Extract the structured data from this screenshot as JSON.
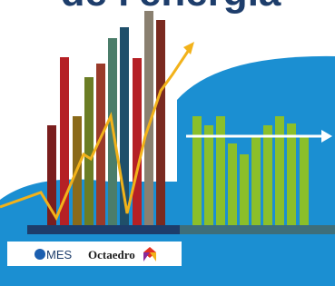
{
  "title": "de l'energia",
  "logos": {
    "left": "MES",
    "right": "Octaedro"
  }
}
